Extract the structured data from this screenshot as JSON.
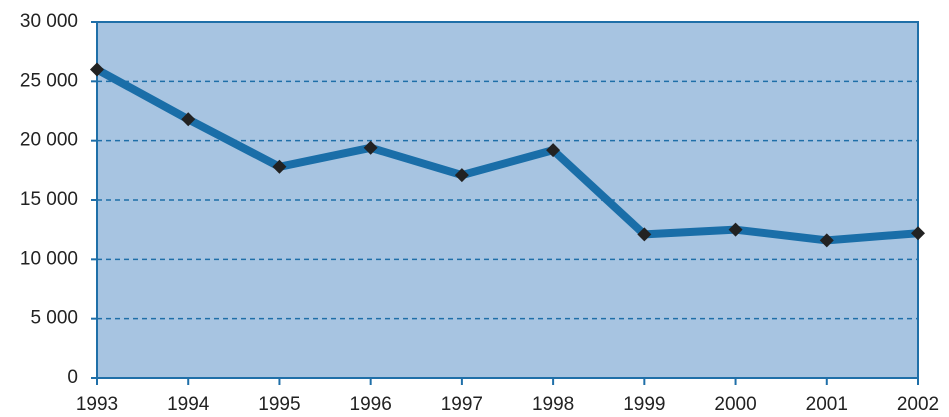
{
  "chart_data": {
    "type": "line",
    "x": [
      1993,
      1994,
      1995,
      1996,
      1997,
      1998,
      1999,
      2000,
      2001,
      2002
    ],
    "series": [
      {
        "color": "#1a6ea8",
        "values": [
          26000,
          21800,
          17800,
          19400,
          17100,
          19200,
          12100,
          12500,
          11600,
          12200
        ]
      }
    ],
    "xlim": [
      1993,
      2002
    ],
    "xticks": [
      1993,
      1994,
      1995,
      1996,
      1997,
      1998,
      1999,
      2000,
      2001,
      2002
    ],
    "ylim": [
      0,
      30000
    ],
    "yticks": [
      0,
      {
        "value": 5000,
        "label": "5 000"
      },
      {
        "value": 10000,
        "label": "10 000"
      },
      {
        "value": 15000,
        "label": "15 000"
      },
      {
        "value": 20000,
        "label": "20 000"
      },
      {
        "value": 25000,
        "label": "25 000"
      },
      {
        "value": 30000,
        "label": "30 000"
      }
    ],
    "grid": true
  }
}
